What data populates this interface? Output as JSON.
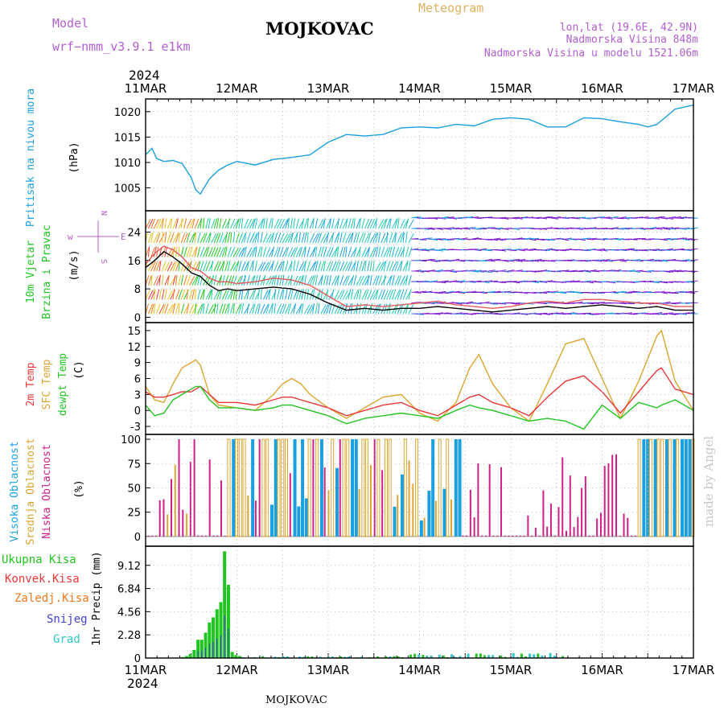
{
  "header": {
    "model_label": "Model",
    "model_name": "wrf−nmm_v3.9.1  e1km",
    "title": "MOJKOVAC",
    "meteogram_label": "Meteogram",
    "lonlat": "lon,lat (19.6E, 42.9N)",
    "altitude": "Nadmorska Visina 848m",
    "model_altitude": "Nadmorska Visina u modelu 1521.06m",
    "year_top": "2024",
    "year_bottom": "2024",
    "footer": "MOJKOVAC",
    "watermark": "made by Angel"
  },
  "colors": {
    "pressure": "#1a9fe0",
    "wind_speed": "#000000",
    "wind_gust": "#e65a5a",
    "temp_2m": "#e83838",
    "temp_sfc": "#d9a632",
    "temp_dew": "#22c422",
    "cloud_high": "#1a9fe0",
    "cloud_mid": "#d9a632",
    "cloud_low": "#cc2288",
    "precip_total": "#22c422",
    "precip_conv": "#e83838",
    "precip_frz": "#f07820",
    "precip_snow": "#4040d8",
    "precip_grad": "#30c8c8",
    "wind_rose": "#b060d0"
  },
  "chart_data": [
    {
      "id": "pressure",
      "type": "line",
      "ylabel_left": "Pritisak na nivou mora",
      "ylabel_unit": "(hPa)",
      "ylim": [
        1000.5,
        1022.5
      ],
      "yticks": [
        1005,
        1010,
        1015,
        1020
      ],
      "xticks": [
        "11MAR",
        "12MAR",
        "13MAR",
        "14MAR",
        "15MAR",
        "16MAR",
        "17MAR"
      ],
      "x": [
        0,
        0.07,
        0.12,
        0.2,
        0.3,
        0.4,
        0.5,
        0.55,
        0.6,
        0.7,
        0.8,
        0.9,
        1.0,
        1.2,
        1.4,
        1.6,
        1.8,
        2.0,
        2.2,
        2.4,
        2.6,
        2.8,
        3.0,
        3.2,
        3.4,
        3.6,
        3.8,
        4.0,
        4.2,
        4.4,
        4.6,
        4.8,
        5.0,
        5.2,
        5.4,
        5.5,
        5.6,
        5.8,
        6.0
      ],
      "series": [
        {
          "key": "pressure",
          "values": [
            1011.5,
            1012.8,
            1010.8,
            1010.2,
            1010.4,
            1009.8,
            1007.0,
            1004.6,
            1003.8,
            1006.8,
            1008.5,
            1009.5,
            1010.2,
            1009.5,
            1010.6,
            1011.0,
            1011.5,
            1014.0,
            1015.5,
            1015.2,
            1015.5,
            1016.8,
            1017.0,
            1016.8,
            1017.5,
            1017.2,
            1018.5,
            1018.8,
            1018.5,
            1017.0,
            1017.0,
            1018.8,
            1018.6,
            1018.0,
            1017.5,
            1017.0,
            1017.5,
            1020.5,
            1021.3
          ]
        }
      ]
    },
    {
      "id": "wind",
      "type": "line",
      "ylabel_left1": "10m Vjetar",
      "ylabel_left2": "Brzina i Pravac",
      "ylabel_unit": "(m/s)",
      "ylim": [
        -1.5,
        30
      ],
      "yticks": [
        0,
        8,
        16,
        24
      ],
      "compass": {
        "west": "w",
        "east": "E",
        "axis_vertical_top": "N",
        "axis_vertical_bottom": "S"
      },
      "x": [
        0,
        0.1,
        0.2,
        0.3,
        0.4,
        0.5,
        0.6,
        0.7,
        0.8,
        0.9,
        1.0,
        1.2,
        1.4,
        1.6,
        1.8,
        2.0,
        2.2,
        2.4,
        2.6,
        2.8,
        3.0,
        3.2,
        3.4,
        3.6,
        3.8,
        4.0,
        4.2,
        4.4,
        4.6,
        4.8,
        5.0,
        5.2,
        5.4,
        5.6,
        5.8,
        6.0
      ],
      "series": [
        {
          "key": "wind_speed",
          "values": [
            14.0,
            16.0,
            18.5,
            17.0,
            15.0,
            12.5,
            11.5,
            9.0,
            7.5,
            8.0,
            7.5,
            8.0,
            8.5,
            8.0,
            6.5,
            4.0,
            2.0,
            2.5,
            2.0,
            2.5,
            2.5,
            3.0,
            2.5,
            2.0,
            1.5,
            2.0,
            2.5,
            3.0,
            2.5,
            3.0,
            3.5,
            3.0,
            2.5,
            3.0,
            2.0,
            2.0
          ]
        },
        {
          "key": "wind_gust",
          "values": [
            15.0,
            18.0,
            20.0,
            19.0,
            17.0,
            14.0,
            13.0,
            11.0,
            10.0,
            10.0,
            9.5,
            10.0,
            11.0,
            10.5,
            9.0,
            6.0,
            3.0,
            3.5,
            3.0,
            3.5,
            4.0,
            4.5,
            3.5,
            3.0,
            2.5,
            3.0,
            4.0,
            4.5,
            4.0,
            5.0,
            5.0,
            4.5,
            4.0,
            4.0,
            3.0,
            3.0
          ]
        }
      ]
    },
    {
      "id": "temperature",
      "type": "line",
      "ylabel_left1": "2m Temp",
      "ylabel_left2": "SFC Temp",
      "ylabel_left3": "dewpt Temp",
      "ylabel_unit": "(C)",
      "ylim": [
        -4.5,
        16.5
      ],
      "yticks": [
        -3,
        0,
        3,
        6,
        9,
        12,
        15
      ],
      "x": [
        0,
        0.1,
        0.2,
        0.3,
        0.4,
        0.5,
        0.55,
        0.6,
        0.7,
        0.8,
        1.0,
        1.2,
        1.4,
        1.5,
        1.6,
        1.7,
        1.8,
        2.0,
        2.2,
        2.4,
        2.6,
        2.8,
        3.0,
        3.2,
        3.4,
        3.55,
        3.65,
        3.8,
        4.0,
        4.2,
        4.4,
        4.6,
        4.8,
        5.0,
        5.2,
        5.4,
        5.6,
        5.65,
        5.8,
        6.0
      ],
      "series": [
        {
          "key": "temp_2m",
          "values": [
            3.5,
            2.5,
            2.5,
            3.0,
            3.5,
            3.5,
            4.0,
            4.5,
            3.0,
            1.5,
            1.5,
            1.0,
            2.0,
            2.5,
            2.5,
            2.0,
            1.5,
            0.5,
            -1.0,
            0.0,
            1.0,
            1.5,
            0.0,
            -1.0,
            1.0,
            2.5,
            3.0,
            1.5,
            0.5,
            -1.0,
            2.5,
            5.5,
            6.5,
            3.5,
            -0.5,
            3.5,
            7.5,
            8.0,
            4.0,
            3.0
          ]
        },
        {
          "key": "temp_sfc",
          "values": [
            4.5,
            2.0,
            1.5,
            5.0,
            8.0,
            9.0,
            9.5,
            8.5,
            3.0,
            1.0,
            0.5,
            0.0,
            3.0,
            5.0,
            6.0,
            5.0,
            3.0,
            0.5,
            -1.5,
            0.5,
            2.5,
            3.0,
            -0.5,
            -2.0,
            1.5,
            8.0,
            10.5,
            5.0,
            0.5,
            -2.0,
            5.0,
            12.5,
            13.5,
            6.0,
            -1.5,
            5.5,
            14.0,
            15.0,
            5.5,
            0.0
          ]
        },
        {
          "key": "temp_dew",
          "values": [
            1.0,
            -1.0,
            -0.5,
            2.0,
            3.0,
            4.0,
            4.5,
            4.5,
            2.0,
            0.5,
            0.5,
            0.0,
            0.5,
            1.0,
            1.0,
            0.5,
            0.0,
            -1.0,
            -2.5,
            -1.5,
            -1.0,
            -0.5,
            -1.0,
            -1.5,
            0.0,
            1.0,
            0.5,
            0.0,
            -1.0,
            -2.0,
            -1.5,
            -2.0,
            -3.5,
            1.0,
            -1.5,
            1.5,
            0.5,
            1.0,
            2.0,
            0.0
          ]
        }
      ]
    },
    {
      "id": "clouds",
      "type": "bar",
      "ylabel_left1": "Visoka Oblacnost",
      "ylabel_left2": "Srednja Oblacnost",
      "ylabel_left3": "Niska Oblacnost",
      "ylabel_unit": "(%)",
      "ylim": [
        0,
        100
      ],
      "yticks": [
        0,
        25,
        50,
        75,
        100
      ]
    },
    {
      "id": "precip",
      "type": "bar",
      "ylabel_unit": "1hr Precip (mm)",
      "ylim": [
        0,
        11.0
      ],
      "yticks": [
        0,
        2.28,
        4.56,
        6.84,
        9.12
      ],
      "ytick_labels": [
        "0",
        "2.28",
        "4.56",
        "6.84",
        "9.12"
      ],
      "xticks": [
        "11MAR",
        "12MAR",
        "13MAR",
        "14MAR",
        "15MAR",
        "16MAR",
        "17MAR"
      ],
      "legend": [
        "Ukupna  Kisa",
        "Konvek.Kisa",
        "Zaledj.Kisa",
        "Snijeg",
        "Grad"
      ],
      "bars_x": [
        0.0,
        0.083,
        0.125,
        0.167,
        0.208,
        0.25,
        0.292,
        0.333,
        0.375,
        0.417,
        0.458,
        0.5,
        0.542,
        0.583,
        0.625,
        0.667,
        0.708,
        0.75
      ],
      "bars_total": [
        0.0,
        0.0,
        0.1,
        0.2,
        0.4,
        0.8,
        1.8,
        1.8,
        2.5,
        3.5,
        4.0,
        4.8,
        5.5,
        10.5,
        7.2,
        0.6,
        0.3,
        0.2
      ]
    }
  ]
}
